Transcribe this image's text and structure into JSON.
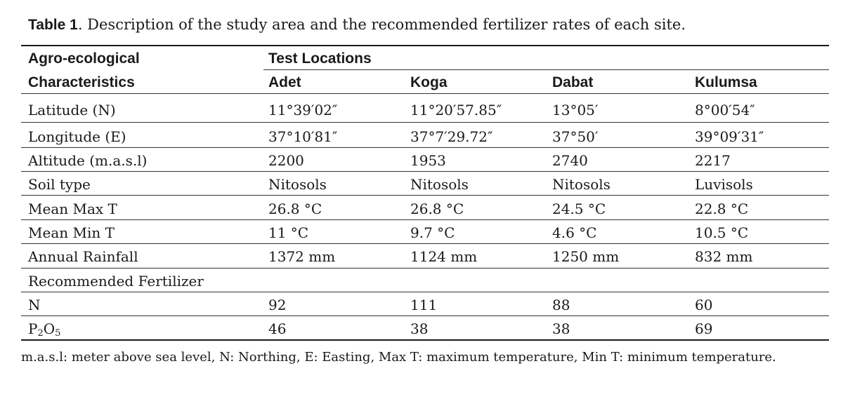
{
  "caption": {
    "label": "Table 1",
    "text": ". Description of the study area and the recommended fertilizer rates of each site."
  },
  "header": {
    "row_label_line1": "Agro-ecological",
    "row_label_line2": "Characteristics",
    "group_label": "Test Locations",
    "columns": [
      "Adet",
      "Koga",
      "Dabat",
      "Kulumsa"
    ]
  },
  "rows": [
    {
      "label": "Latitude (N)",
      "values": [
        "11°39′02″",
        "11°20′57.85″",
        "13°05′",
        "8°00′54″"
      ]
    },
    {
      "label": "Longitude (E)",
      "values": [
        "37°10′81″",
        "37°7′29.72″",
        "37°50′",
        "39°09′31″"
      ]
    },
    {
      "label": "Altitude (m.a.s.l)",
      "values": [
        "2200",
        "1953",
        "2740",
        "2217"
      ]
    },
    {
      "label": "Soil type",
      "values": [
        "Nitosols",
        "Nitosols",
        "Nitosols",
        "Luvisols"
      ]
    },
    {
      "label": "Mean Max T",
      "values": [
        "26.8 °C",
        "26.8 °C",
        "24.5 °C",
        "22.8 °C"
      ]
    },
    {
      "label": "Mean Min T",
      "values": [
        "11 °C",
        "9.7 °C",
        "4.6 °C",
        "10.5 °C"
      ]
    },
    {
      "label": "Annual Rainfall",
      "values": [
        "1372 mm",
        "1124 mm",
        "1250 mm",
        "832 mm"
      ]
    },
    {
      "label": "Recommended Fertilizer",
      "values": [
        "",
        "",
        "",
        ""
      ]
    },
    {
      "label": "N",
      "values": [
        "92",
        "111",
        "88",
        "60"
      ]
    },
    {
      "label_main": "P",
      "label_sub1": "2",
      "label_mid": "O",
      "label_sub2": "5",
      "values": [
        "46",
        "38",
        "38",
        "69"
      ]
    }
  ],
  "footnote": "m.a.s.l: meter above sea level, N: Northing, E: Easting, Max T: maximum temperature, Min T: minimum temperature."
}
